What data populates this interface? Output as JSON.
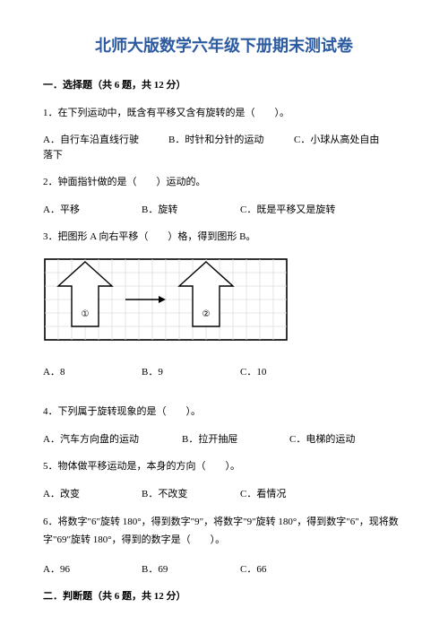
{
  "title": "北师大版数学六年级下册期末测试卷",
  "section1": {
    "header": "一．选择题（共 6 题，共 12 分）"
  },
  "q1": {
    "text": "1．在下列运动中，既含有平移又含有旋转的是（　　）。",
    "a": "A．自行车沿直线行驶",
    "b": "B．时针和分针的运动",
    "c": "C．小球从高处自由",
    "cTail": "落下"
  },
  "q2": {
    "text": "2．钟面指针做的是（　　）运动的。",
    "a": "A．平移",
    "b": "B．旋转",
    "c": "C．既是平移又是旋转"
  },
  "q3": {
    "text": "3．把图形 A 向右平移（　　）格，得到图形 B。",
    "a": "A．8",
    "b": "B．9",
    "c": "C．10"
  },
  "q4": {
    "text": "4．下列属于旋转现象的是（　　）。",
    "a": "A．汽车方向盘的运动",
    "b": "B．拉开抽屉",
    "c": "C．电梯的运动"
  },
  "q5": {
    "text": "5．物体做平移运动是，本身的方向（　　）。",
    "a": "A．改变",
    "b": "B．不改变",
    "c": "C．看情况"
  },
  "q6": {
    "text": "6．将数字\"6\"旋转 180°，得到数字\"9\"，将数字\"9\"旋转 180°，得到数字\"6\"，现将数字\"69\"旋转 180°，得到的数字是（　　）。",
    "a": "A．96",
    "b": "B．69",
    "c": "C．66"
  },
  "section2": {
    "header": "二．判断题（共 6 题，共 12 分）"
  },
  "figure": {
    "cols": 18,
    "rows": 6,
    "cell": 15,
    "border_color": "#000000",
    "grid_color": "#dcdcdc",
    "arrow_fill": "#ffffff",
    "arrow_stroke": "#000000",
    "label1": "①",
    "label2": "②",
    "interArrow_stroke": "#000000"
  }
}
